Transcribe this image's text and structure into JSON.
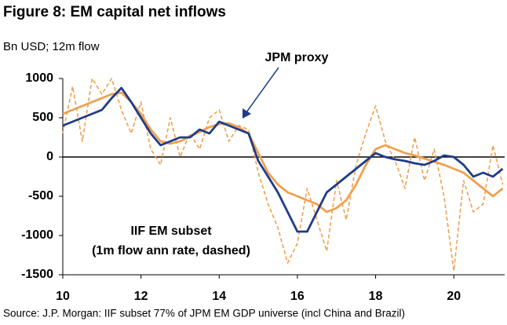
{
  "chart_data": {
    "type": "line",
    "title": "Figure 8: EM capital net inflows",
    "subtitle": "Bn USD; 12m flow",
    "source": "Source: J.P. Morgan: IIF subset 77% of JPM EM GDP universe (incl China and Brazil)",
    "x": [
      10,
      10.25,
      10.5,
      10.75,
      11,
      11.25,
      11.5,
      11.75,
      12,
      12.25,
      12.5,
      12.75,
      13,
      13.25,
      13.5,
      13.75,
      14,
      14.25,
      14.5,
      14.75,
      15,
      15.25,
      15.5,
      15.75,
      16,
      16.25,
      16.5,
      16.75,
      17,
      17.25,
      17.5,
      17.75,
      18,
      18.25,
      18.5,
      18.75,
      19,
      19.25,
      19.5,
      19.75,
      20,
      20.25,
      20.5,
      20.75,
      21,
      21.25
    ],
    "series": [
      {
        "name": "JPM proxy",
        "color": "#1f3c88",
        "dashed": false,
        "values": [
          400,
          450,
          500,
          550,
          600,
          750,
          880,
          700,
          500,
          300,
          150,
          200,
          250,
          250,
          350,
          300,
          450,
          400,
          350,
          300,
          -50,
          -250,
          -450,
          -700,
          -950,
          -950,
          -700,
          -450,
          -350,
          -250,
          -150,
          -50,
          50,
          0,
          -30,
          -50,
          -80,
          -100,
          -50,
          20,
          0,
          -100,
          -250,
          -200,
          -250,
          -150
        ]
      },
      {
        "name": "IIF EM subset",
        "color": "#f0a050",
        "dashed": false,
        "values": [
          550,
          600,
          650,
          700,
          750,
          800,
          820,
          700,
          550,
          350,
          200,
          170,
          200,
          260,
          320,
          380,
          420,
          430,
          380,
          300,
          50,
          -200,
          -350,
          -450,
          -500,
          -550,
          -600,
          -700,
          -650,
          -550,
          -350,
          -100,
          100,
          150,
          100,
          50,
          20,
          -20,
          -60,
          -100,
          -150,
          -200,
          -300,
          -400,
          -500,
          -400
        ]
      },
      {
        "name": "(1m flow ann rate, dashed)",
        "color": "#f0a050",
        "dashed": true,
        "values": [
          300,
          900,
          200,
          1000,
          800,
          1000,
          600,
          300,
          700,
          100,
          -100,
          500,
          0,
          300,
          100,
          500,
          600,
          200,
          400,
          350,
          -200,
          -600,
          -900,
          -1350,
          -1100,
          -400,
          -800,
          -1200,
          -300,
          -800,
          -100,
          300,
          650,
          200,
          -50,
          -400,
          250,
          -300,
          100,
          -500,
          -1450,
          -300,
          -700,
          -600,
          150,
          -350
        ]
      }
    ],
    "xlim": [
      10,
      21.3
    ],
    "xticks": [
      10,
      12,
      14,
      16,
      18,
      20
    ],
    "ylim": [
      -1500,
      1000
    ],
    "yticks": [
      -1500,
      -1000,
      -500,
      0,
      500,
      1000
    ]
  }
}
